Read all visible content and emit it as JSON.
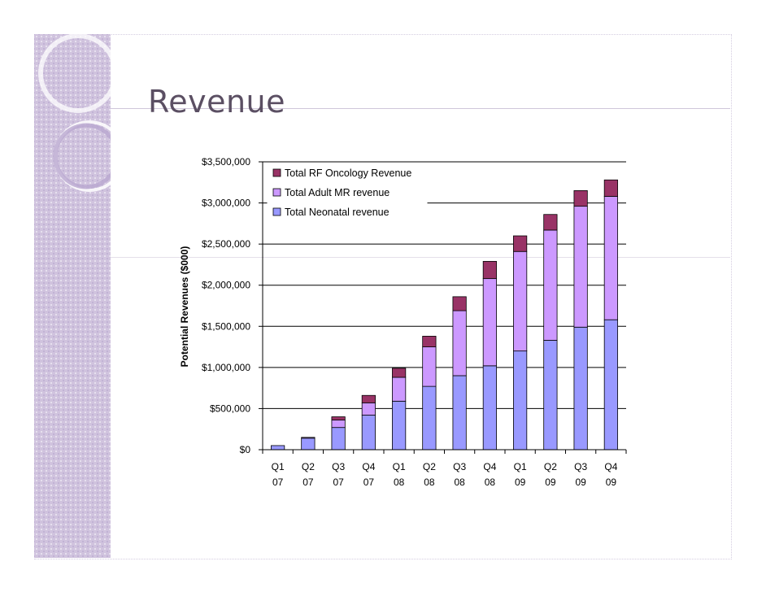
{
  "slide": {
    "title": "Revenue",
    "colors": {
      "panel": "#d0c3de",
      "title_text": "#5b4f63"
    }
  },
  "chart_data": {
    "type": "bar",
    "stacked": true,
    "title": "",
    "xlabel": "",
    "ylabel": "Potential Revenues ($000)",
    "ylim": [
      0,
      3500000
    ],
    "yticks": [
      0,
      500000,
      1000000,
      1500000,
      2000000,
      2500000,
      3000000,
      3500000
    ],
    "ytick_labels": [
      "$0",
      "$500,000",
      "$1,000,000",
      "$1,500,000",
      "$2,000,000",
      "$2,500,000",
      "$3,000,000",
      "$3,500,000"
    ],
    "grid": true,
    "legend_position": "top-left",
    "categories": [
      [
        "Q1",
        "07"
      ],
      [
        "Q2",
        "07"
      ],
      [
        "Q3",
        "07"
      ],
      [
        "Q4",
        "07"
      ],
      [
        "Q1",
        "08"
      ],
      [
        "Q2",
        "08"
      ],
      [
        "Q3",
        "08"
      ],
      [
        "Q4",
        "08"
      ],
      [
        "Q1",
        "09"
      ],
      [
        "Q2",
        "09"
      ],
      [
        "Q3",
        "09"
      ],
      [
        "Q4",
        "09"
      ]
    ],
    "series": [
      {
        "name": "Total Neonatal revenue",
        "color": "#9999ff",
        "values": [
          50000,
          140000,
          270000,
          420000,
          590000,
          770000,
          900000,
          1020000,
          1200000,
          1330000,
          1490000,
          1580000
        ]
      },
      {
        "name": "Total Adult MR revenue",
        "color": "#cc99ff",
        "values": [
          0,
          10000,
          90000,
          150000,
          290000,
          480000,
          790000,
          1060000,
          1210000,
          1340000,
          1470000,
          1500000
        ]
      },
      {
        "name": "Total RF Oncology Revenue",
        "color": "#993366",
        "values": [
          0,
          0,
          40000,
          90000,
          110000,
          130000,
          170000,
          210000,
          190000,
          190000,
          190000,
          200000
        ]
      }
    ],
    "legend_order": [
      2,
      1,
      0
    ]
  }
}
